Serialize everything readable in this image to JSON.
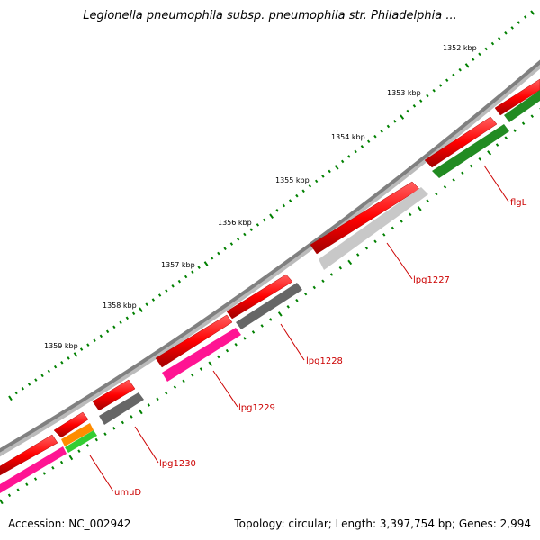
{
  "title": "Legionella pneumophila subsp. pneumophila str. Philadelphia ...",
  "accession": "Accession: NC_002942",
  "summary": "Topology: circular; Length: 3,397,754 bp; Genes: 2,994",
  "colors": {
    "backbone": "#808080",
    "cds_strand": "#ff0000",
    "tick": "#008000",
    "gene_label": "#cc0000"
  },
  "scale_labels": [
    "1352 kbp",
    "1353 kbp",
    "1354 kbp",
    "1355 kbp",
    "1356 kbp",
    "1357 kbp",
    "1358 kbp",
    "1359 kbp"
  ],
  "genes": [
    {
      "label": "flgL",
      "color": "#228b22"
    },
    {
      "label": "lpg1227",
      "color": "#c8c8c8"
    },
    {
      "label": "lpg1228",
      "color": "#666666"
    },
    {
      "label": "lpg1229",
      "color": "#ff1493"
    },
    {
      "label": "lpg1230",
      "color": "#666666"
    },
    {
      "label": "umuD",
      "color": "#ff1493"
    }
  ]
}
